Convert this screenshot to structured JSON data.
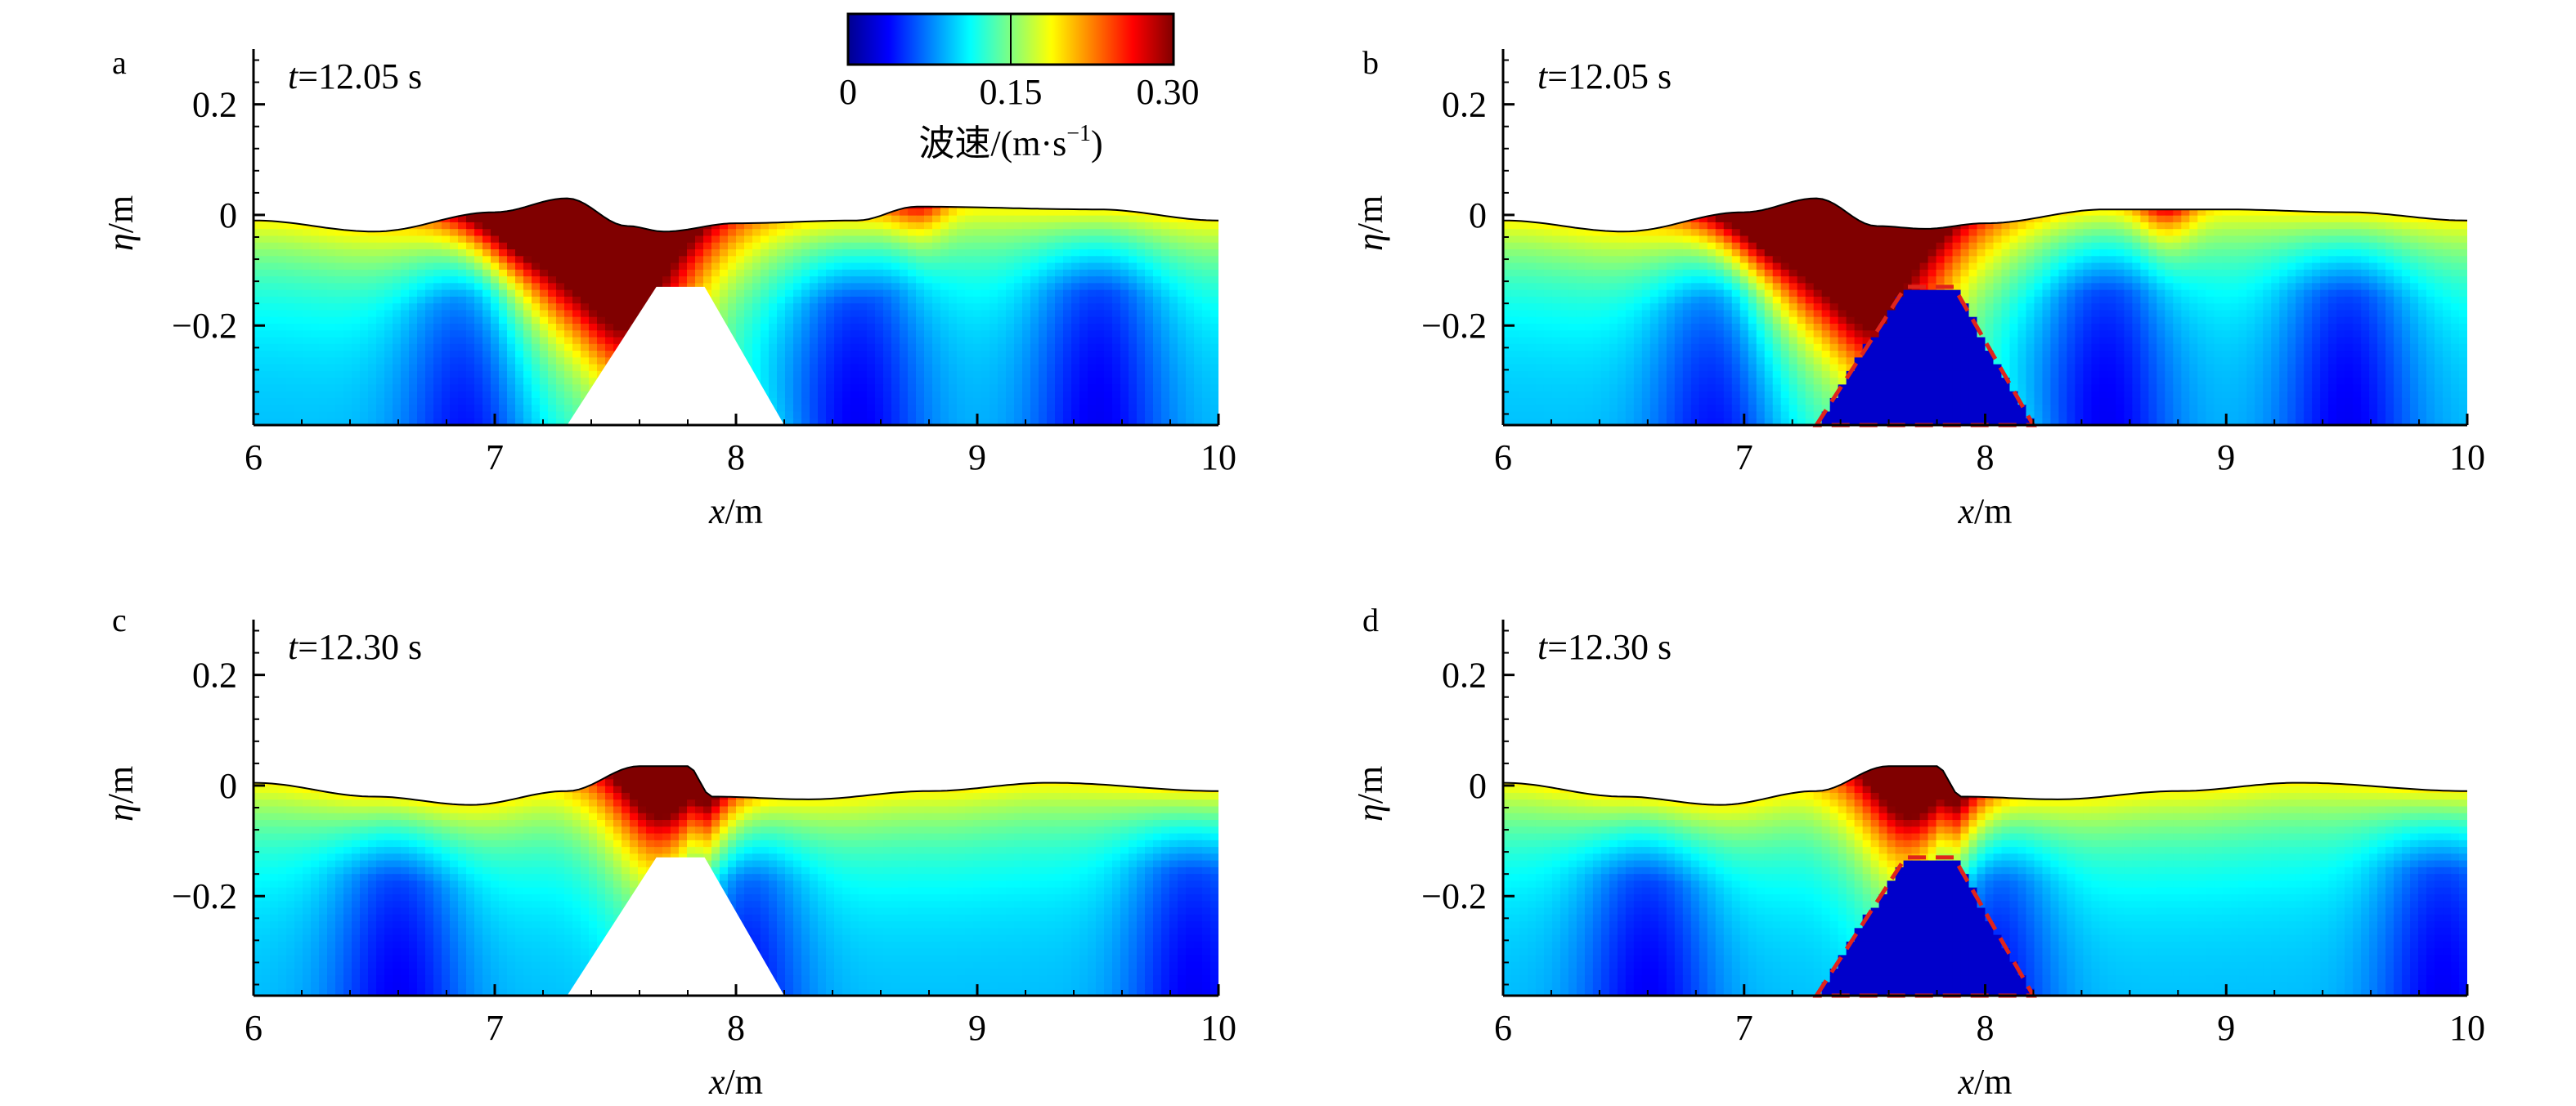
{
  "colorbar": {
    "ticks": [
      "0",
      "0.15",
      "0.30"
    ],
    "title_main": "波速/(m·s",
    "title_sup": "−1",
    "title_close": ")",
    "colors": [
      "#00008f",
      "#0000ff",
      "#0080ff",
      "#00ffff",
      "#80ff80",
      "#ffff00",
      "#ff8000",
      "#ff0000",
      "#800000"
    ]
  },
  "chart_data": [
    {
      "type": "heatmap",
      "panel": "a",
      "time_label": {
        "italic": "t",
        "text": "=12.05 s"
      },
      "xlabel": {
        "italic": "x",
        "text": "/m"
      },
      "ylabel": {
        "italic": "η",
        "text": "/m"
      },
      "xlim": [
        6,
        10
      ],
      "ylim": [
        -0.38,
        0.3
      ],
      "xticks": [
        6,
        7,
        8,
        9,
        10
      ],
      "yticks": [
        0.2,
        0,
        -0.2
      ],
      "ytick_labels": [
        "0.2",
        "0",
        "−0.2"
      ],
      "structure": "solid",
      "breakwater": {
        "x": [
          7.3,
          7.67,
          7.87,
          8.2
        ],
        "y_top": -0.13
      },
      "free_surface": {
        "x": [
          6.0,
          6.5,
          7.0,
          7.3,
          7.55,
          7.7,
          8.0,
          8.5,
          8.75,
          9.5,
          10.0
        ],
        "eta": [
          -0.01,
          -0.03,
          0.005,
          0.03,
          -0.02,
          -0.03,
          -0.015,
          -0.01,
          0.015,
          0.01,
          -0.01
        ]
      }
    },
    {
      "type": "heatmap",
      "panel": "b",
      "time_label": {
        "italic": "t",
        "text": "=12.05 s"
      },
      "xlabel": {
        "italic": "x",
        "text": "/m"
      },
      "ylabel": {
        "italic": "η",
        "text": "/m"
      },
      "xlim": [
        6,
        10
      ],
      "ylim": [
        -0.38,
        0.3
      ],
      "xticks": [
        6,
        7,
        8,
        9,
        10
      ],
      "yticks": [
        0.2,
        0,
        -0.2
      ],
      "ytick_labels": [
        "0.2",
        "0",
        "−0.2"
      ],
      "structure": "porous",
      "breakwater": {
        "x": [
          7.3,
          7.67,
          7.87,
          8.2
        ],
        "y_top": -0.13
      },
      "free_surface": {
        "x": [
          6.0,
          6.5,
          7.0,
          7.3,
          7.55,
          7.75,
          8.0,
          8.5,
          9.0,
          9.5,
          10.0
        ],
        "eta": [
          -0.01,
          -0.03,
          0.005,
          0.03,
          -0.02,
          -0.025,
          -0.015,
          0.01,
          0.01,
          0.005,
          -0.01
        ]
      }
    },
    {
      "type": "heatmap",
      "panel": "c",
      "time_label": {
        "italic": "t",
        "text": "=12.30 s"
      },
      "xlabel": {
        "italic": "x",
        "text": "/m"
      },
      "ylabel": {
        "italic": "η",
        "text": "/m"
      },
      "xlim": [
        6,
        10
      ],
      "ylim": [
        -0.38,
        0.3
      ],
      "xticks": [
        6,
        7,
        8,
        9,
        10
      ],
      "yticks": [
        0.2,
        0,
        -0.2
      ],
      "ytick_labels": [
        "0.2",
        "0",
        "−0.2"
      ],
      "structure": "solid",
      "breakwater": {
        "x": [
          7.3,
          7.67,
          7.87,
          8.2
        ],
        "y_top": -0.13
      },
      "free_surface": {
        "x": [
          6.0,
          6.5,
          6.9,
          7.3,
          7.6,
          7.8,
          7.9,
          8.3,
          8.8,
          9.3,
          10.0
        ],
        "eta": [
          0.005,
          -0.02,
          -0.035,
          -0.01,
          0.035,
          0.035,
          -0.02,
          -0.025,
          -0.01,
          0.005,
          -0.01
        ]
      }
    },
    {
      "type": "heatmap",
      "panel": "d",
      "time_label": {
        "italic": "t",
        "text": "=12.30 s"
      },
      "xlabel": {
        "italic": "x",
        "text": "/m"
      },
      "ylabel": {
        "italic": "η",
        "text": "/m"
      },
      "xlim": [
        6,
        10
      ],
      "ylim": [
        -0.38,
        0.3
      ],
      "xticks": [
        6,
        7,
        8,
        9,
        10
      ],
      "yticks": [
        0.2,
        0,
        -0.2
      ],
      "ytick_labels": [
        "0.2",
        "0",
        "−0.2"
      ],
      "structure": "porous",
      "breakwater": {
        "x": [
          7.3,
          7.67,
          7.87,
          8.2
        ],
        "y_top": -0.13
      },
      "free_surface": {
        "x": [
          6.0,
          6.5,
          6.9,
          7.3,
          7.6,
          7.8,
          7.9,
          8.3,
          8.8,
          9.3,
          10.0
        ],
        "eta": [
          0.005,
          -0.02,
          -0.035,
          -0.01,
          0.035,
          0.035,
          -0.02,
          -0.025,
          -0.01,
          0.005,
          -0.01
        ]
      }
    }
  ]
}
